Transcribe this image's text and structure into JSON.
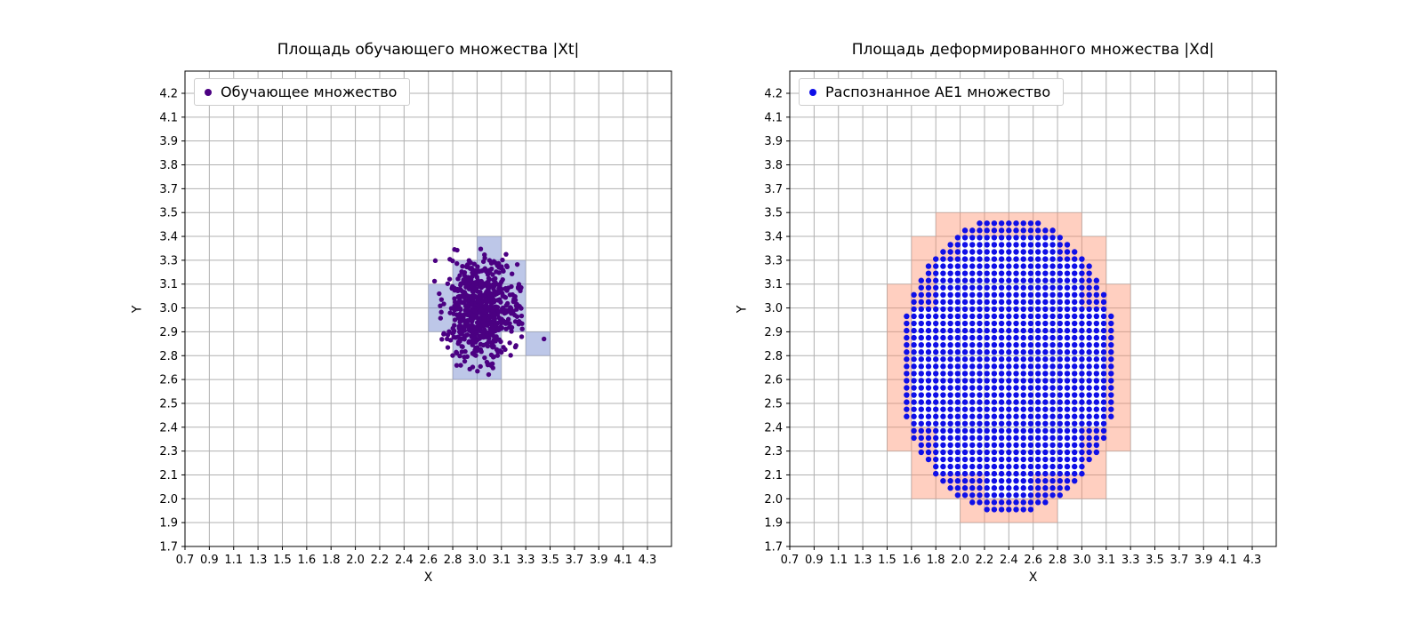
{
  "page": {
    "background": "#ffffff"
  },
  "chart_data": [
    {
      "type": "scatter",
      "title": "Площадь обучающего множества |Xt|",
      "xlabel": "X",
      "ylabel": "Y",
      "legend_label": "Обучающее множество",
      "legend_position": "upper-left",
      "grid": true,
      "grid_color": "#b0b0b0",
      "point_color": "#4b0082",
      "cell_fill": "rgba(108,130,205,0.45)",
      "x_ticks": [
        0.7,
        0.9,
        1.1,
        1.3,
        1.5,
        1.6,
        1.8,
        2.0,
        2.2,
        2.4,
        2.6,
        2.8,
        3.0,
        3.1,
        3.3,
        3.5,
        3.7,
        3.9,
        4.1,
        4.3
      ],
      "y_ticks": [
        1.7,
        1.9,
        2.0,
        2.1,
        2.3,
        2.4,
        2.5,
        2.6,
        2.8,
        2.9,
        3.0,
        3.1,
        3.3,
        3.4,
        3.5,
        3.7,
        3.8,
        3.9,
        4.1,
        4.2
      ],
      "highlight_cells": [
        [
          10,
          9
        ],
        [
          10,
          10
        ],
        [
          11,
          7
        ],
        [
          11,
          8
        ],
        [
          11,
          9
        ],
        [
          11,
          10
        ],
        [
          11,
          11
        ],
        [
          12,
          7
        ],
        [
          12,
          8
        ],
        [
          12,
          9
        ],
        [
          12,
          10
        ],
        [
          12,
          11
        ],
        [
          12,
          12
        ],
        [
          13,
          9
        ],
        [
          13,
          10
        ],
        [
          13,
          11
        ],
        [
          14,
          8
        ]
      ],
      "cluster": {
        "center": [
          12.15,
          9.9
        ],
        "std": [
          0.75,
          1.05
        ],
        "n": 700,
        "seed": 42,
        "dot_radius": 2.7,
        "center_value": [
          3.03,
          3.0
        ],
        "std_value": [
          0.1,
          0.12
        ]
      },
      "extra_points": [
        [
          14.75,
          8.7
        ]
      ]
    },
    {
      "type": "scatter",
      "title": "Площадь деформированного множества |Xd|",
      "xlabel": "X",
      "ylabel": "Y",
      "legend_label": "Распознанное AE1 множество",
      "legend_position": "upper-left",
      "grid": true,
      "grid_color": "#b0b0b0",
      "point_color": "#0f0fe8",
      "cell_fill": "rgba(255,140,105,0.42)",
      "x_ticks": [
        0.7,
        0.9,
        1.1,
        1.3,
        1.5,
        1.6,
        1.8,
        2.0,
        2.2,
        2.4,
        2.6,
        2.8,
        3.0,
        3.1,
        3.3,
        3.5,
        3.7,
        3.9,
        4.1,
        4.3
      ],
      "y_ticks": [
        1.7,
        1.9,
        2.0,
        2.1,
        2.3,
        2.4,
        2.5,
        2.6,
        2.8,
        2.9,
        3.0,
        3.1,
        3.3,
        3.4,
        3.5,
        3.7,
        3.8,
        3.9,
        4.1,
        4.2
      ],
      "highlight_cells": [
        [
          4,
          4
        ],
        [
          4,
          5
        ],
        [
          4,
          6
        ],
        [
          4,
          7
        ],
        [
          4,
          8
        ],
        [
          4,
          9
        ],
        [
          4,
          10
        ],
        [
          5,
          2
        ],
        [
          5,
          3
        ],
        [
          5,
          4
        ],
        [
          5,
          10
        ],
        [
          5,
          11
        ],
        [
          5,
          12
        ],
        [
          6,
          2
        ],
        [
          6,
          12
        ],
        [
          6,
          13
        ],
        [
          7,
          1
        ],
        [
          7,
          2
        ],
        [
          7,
          13
        ],
        [
          8,
          1
        ],
        [
          8,
          13
        ],
        [
          9,
          1
        ],
        [
          9,
          13
        ],
        [
          10,
          1
        ],
        [
          10,
          2
        ],
        [
          10,
          13
        ],
        [
          11,
          2
        ],
        [
          11,
          12
        ],
        [
          11,
          13
        ],
        [
          12,
          2
        ],
        [
          12,
          3
        ],
        [
          12,
          4
        ],
        [
          12,
          10
        ],
        [
          12,
          11
        ],
        [
          12,
          12
        ],
        [
          13,
          4
        ],
        [
          13,
          5
        ],
        [
          13,
          6
        ],
        [
          13,
          7
        ],
        [
          13,
          8
        ],
        [
          13,
          9
        ],
        [
          13,
          10
        ]
      ],
      "disk": {
        "center": [
          9.0,
          7.6
        ],
        "rx": 4.5,
        "ry": 6.2,
        "spacing": 0.3,
        "dot_radius": 3.2,
        "center_value": [
          2.4,
          2.7
        ],
        "radius_value": [
          0.85,
          0.78
        ]
      }
    }
  ]
}
